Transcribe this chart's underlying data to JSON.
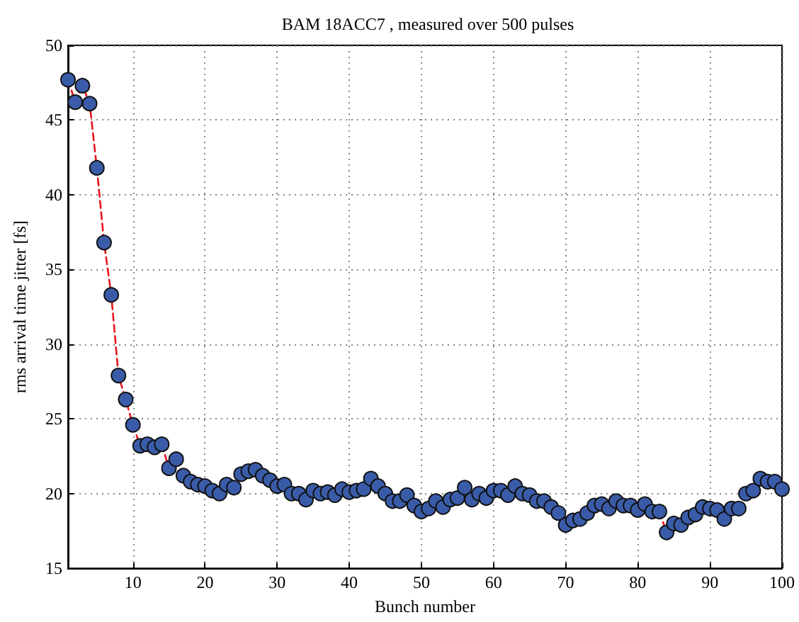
{
  "chart_data": {
    "type": "line",
    "title": "BAM 18ACC7 , measured over 500 pulses",
    "xlabel": "Bunch number",
    "ylabel": "rms arrival time jitter [fs]",
    "x": [
      1,
      2,
      3,
      4,
      5,
      6,
      7,
      8,
      9,
      10,
      11,
      12,
      13,
      14,
      15,
      16,
      17,
      18,
      19,
      20,
      21,
      22,
      23,
      24,
      25,
      26,
      27,
      28,
      29,
      30,
      31,
      32,
      33,
      34,
      35,
      36,
      37,
      38,
      39,
      40,
      41,
      42,
      43,
      44,
      45,
      46,
      47,
      48,
      49,
      50,
      51,
      52,
      53,
      54,
      55,
      56,
      57,
      58,
      59,
      60,
      61,
      62,
      63,
      64,
      65,
      66,
      67,
      68,
      69,
      70,
      71,
      72,
      73,
      74,
      75,
      76,
      77,
      78,
      79,
      80,
      81,
      82,
      83,
      84,
      85,
      86,
      87,
      88,
      89,
      90,
      91,
      92,
      93,
      94,
      95,
      96,
      97,
      98,
      99,
      100
    ],
    "series": [
      {
        "color": "#e8141c",
        "line_style": "dashed",
        "marker": "none",
        "x": [
          1,
          2,
          3,
          4,
          5,
          6,
          7,
          8,
          9,
          10,
          11,
          12,
          13,
          14,
          15,
          16
        ],
        "values": [
          47.7,
          46.2,
          47.3,
          46.1,
          41.8,
          36.8,
          33.3,
          27.9,
          26.3,
          24.6,
          23.2,
          23.3,
          23.1,
          23.3,
          21.7,
          22.3
        ]
      },
      {
        "color": "#e8141c",
        "line_style": "dashed",
        "marker": "none",
        "x": [
          83,
          84
        ],
        "values": [
          18.8,
          17.4
        ]
      },
      {
        "type": "scatter",
        "color": "#3a5ca8",
        "marker": "circle",
        "values": [
          47.7,
          46.2,
          47.3,
          46.1,
          41.8,
          36.8,
          33.3,
          27.9,
          26.3,
          24.6,
          23.2,
          23.3,
          23.1,
          23.3,
          21.7,
          22.3,
          21.2,
          20.8,
          20.6,
          20.5,
          20.2,
          20.0,
          20.6,
          20.4,
          21.3,
          21.5,
          21.6,
          21.2,
          20.9,
          20.5,
          20.6,
          20.0,
          20.0,
          19.6,
          20.2,
          20.0,
          20.1,
          19.9,
          20.3,
          20.1,
          20.2,
          20.3,
          21.0,
          20.5,
          20.0,
          19.5,
          19.5,
          19.9,
          19.2,
          18.8,
          19.0,
          19.5,
          19.1,
          19.6,
          19.7,
          20.4,
          19.6,
          20.0,
          19.7,
          20.2,
          20.2,
          19.9,
          20.5,
          20.0,
          19.9,
          19.5,
          19.5,
          19.1,
          18.7,
          17.9,
          18.2,
          18.3,
          18.7,
          19.2,
          19.3,
          19.0,
          19.5,
          19.2,
          19.2,
          18.9,
          19.3,
          18.8,
          18.8,
          17.4,
          18.0,
          17.9,
          18.4,
          18.6,
          19.1,
          19.0,
          18.9,
          18.3,
          19.0,
          19.0,
          20.0,
          20.2,
          21.0,
          20.8,
          20.8,
          20.3
        ]
      }
    ],
    "xlim": [
      1,
      100
    ],
    "xticks": [
      10,
      20,
      30,
      40,
      50,
      60,
      70,
      80,
      90,
      100
    ],
    "ylim": [
      15,
      50
    ],
    "yticks": [
      15,
      20,
      25,
      30,
      35,
      40,
      45,
      50
    ],
    "grid": true
  }
}
